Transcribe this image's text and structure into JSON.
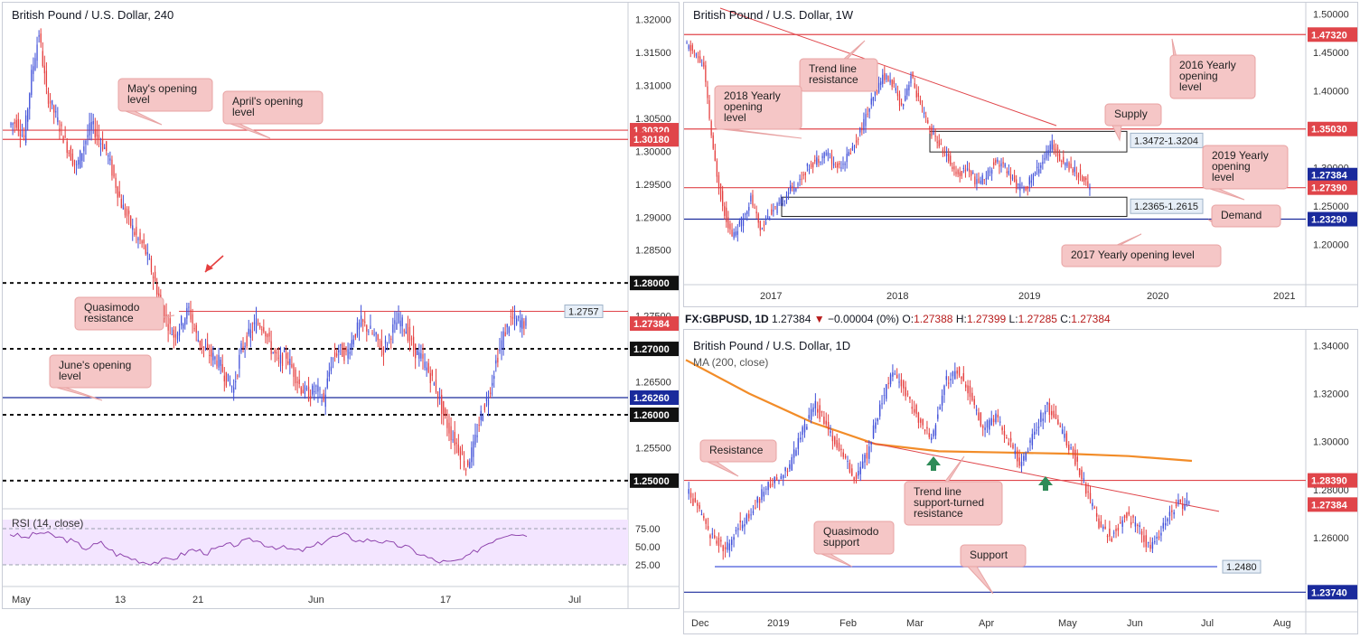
{
  "colors": {
    "bull": "#3f4fd8",
    "bear": "#e53e3e",
    "level_red": "#e0454a",
    "level_blue": "#1a2a9c",
    "level_black": "#111111",
    "callout_fill": "#f5c6c6",
    "callout_stroke": "#e8a3a3",
    "ma": "#f28c28",
    "rsi": "#8e44ad",
    "rsi_band": "#f3e5ff",
    "price_tag_red": "#e0454a",
    "price_tag_blue": "#1a2a9c",
    "price_tag_black": "#111111",
    "arrow_green": "#2e8b57"
  },
  "panel_4h": {
    "title": "British Pound / U.S. Dollar, 240",
    "rsi_label": "RSI (14, close)",
    "callouts": {
      "may_open": "May's opening level",
      "april_open": "April's opening level",
      "quasimodo": "Quasimodo resistance",
      "june_open": "June's opening level"
    },
    "arrow_icon": "red-arrow-icon",
    "rsi_ticks": [
      "75.00",
      "50.00",
      "25.00"
    ],
    "chart_data": {
      "type": "candlestick",
      "title": "British Pound / U.S. Dollar, 240",
      "ylim": [
        1.246,
        1.322
      ],
      "y_ticks": [
        "1.32000",
        "1.31500",
        "1.31000",
        "1.30500",
        "1.30000",
        "1.29500",
        "1.29000",
        "1.28500",
        "1.28000",
        "1.27500",
        "1.27000",
        "1.26500",
        "1.26000",
        "1.25500",
        "1.25000"
      ],
      "x_ticks": [
        "May",
        "13",
        "21",
        "Jun",
        "17",
        "Jul"
      ],
      "levels": [
        {
          "name": "april-open",
          "value": 1.3032,
          "label": "1.30320",
          "style": "red"
        },
        {
          "name": "may-open",
          "value": 1.3018,
          "label": "1.30180",
          "style": "red"
        },
        {
          "name": "round-1-28",
          "value": 1.28,
          "label": "1.28000",
          "style": "dash"
        },
        {
          "name": "quasimodo",
          "value": 1.2757,
          "label": "1.2757",
          "style": "thin-red"
        },
        {
          "name": "current",
          "value": 1.27384,
          "label": "1.27384",
          "style": "red-tag"
        },
        {
          "name": "round-1-27",
          "value": 1.27,
          "label": "1.27000",
          "style": "dash"
        },
        {
          "name": "june-open",
          "value": 1.2626,
          "label": "1.26260",
          "style": "blue"
        },
        {
          "name": "round-1-26",
          "value": 1.26,
          "label": "1.26000",
          "style": "dash"
        },
        {
          "name": "round-1-25",
          "value": 1.25,
          "label": "1.25000",
          "style": "dash"
        }
      ],
      "path": [
        [
          1.304,
          1.3045
        ],
        [
          1.302,
          1.3115
        ],
        [
          1.318,
          1.309
        ],
        [
          1.306,
          1.303
        ],
        [
          1.3,
          1.2975
        ],
        [
          1.301,
          1.304
        ],
        [
          1.302,
          1.3
        ],
        [
          1.296,
          1.292
        ],
        [
          1.2895,
          1.287
        ],
        [
          1.2855,
          1.282
        ],
        [
          1.278,
          1.2745
        ],
        [
          1.272,
          1.274
        ],
        [
          1.276,
          1.272
        ],
        [
          1.27,
          1.269
        ],
        [
          1.268,
          1.2655
        ],
        [
          1.264,
          1.27
        ],
        [
          1.272,
          1.274
        ],
        [
          1.2735,
          1.27
        ],
        [
          1.268,
          1.269
        ],
        [
          1.2665,
          1.264
        ],
        [
          1.263,
          1.264
        ],
        [
          1.262,
          1.268
        ],
        [
          1.27,
          1.269
        ],
        [
          1.272,
          1.274
        ],
        [
          1.273,
          1.2715
        ],
        [
          1.27,
          1.2725
        ],
        [
          1.2745,
          1.273
        ],
        [
          1.27,
          1.2685
        ],
        [
          1.2665,
          1.264
        ],
        [
          1.26,
          1.257
        ],
        [
          1.255,
          1.252
        ],
        [
          1.255,
          1.26
        ],
        [
          1.263,
          1.268
        ],
        [
          1.272,
          1.2745
        ],
        [
          1.2742,
          1.2738
        ]
      ],
      "rsi_values": [
        68,
        62,
        70,
        64,
        58,
        48,
        55,
        40,
        34,
        28,
        30,
        36,
        46,
        42,
        50,
        54,
        60,
        52,
        48,
        44,
        50,
        62,
        66,
        58,
        60,
        54,
        50,
        40,
        30,
        28,
        34,
        50,
        62,
        70,
        66
      ]
    }
  },
  "panel_1w": {
    "title": "British Pound / U.S. Dollar, 1W",
    "callouts": {
      "trend_line": "Trend line resistance",
      "yearly_2018": "2018 Yearly opening level",
      "supply": "Supply",
      "yearly_2016": "2016 Yearly opening level",
      "yearly_2019": "2019 Yearly opening level",
      "demand": "Demand",
      "yearly_2017": "2017 Yearly opening level"
    },
    "zones": {
      "supply": "1.3472-1.3204",
      "demand": "1.2365-1.2615"
    },
    "chart_data": {
      "type": "candlestick",
      "title": "British Pound / U.S. Dollar, 1W",
      "ylim": [
        1.15,
        1.51
      ],
      "y_ticks": [
        "1.50000",
        "1.45000",
        "1.40000",
        "1.35000",
        "1.30000",
        "1.25000",
        "1.20000"
      ],
      "x_ticks": [
        "2017",
        "2018",
        "2019",
        "2020",
        "2021"
      ],
      "levels": [
        {
          "name": "yearly-2016",
          "value": 1.4732,
          "label": "1.47320",
          "style": "red"
        },
        {
          "name": "yearly-2018",
          "value": 1.3503,
          "label": "1.35030",
          "style": "red"
        },
        {
          "name": "current",
          "value": 1.27384,
          "label": "1.27384",
          "style": "blue-tag"
        },
        {
          "name": "yearly-2019",
          "value": 1.2739,
          "label": "1.27390",
          "style": "red"
        },
        {
          "name": "yearly-2017",
          "value": 1.2329,
          "label": "1.23290",
          "style": "blue"
        }
      ],
      "path": [
        [
          1.46,
          1.45
        ],
        [
          1.43,
          1.32
        ],
        [
          1.25,
          1.21
        ],
        [
          1.23,
          1.26
        ],
        [
          1.22,
          1.24
        ],
        [
          1.25,
          1.27
        ],
        [
          1.28,
          1.3
        ],
        [
          1.31,
          1.32
        ],
        [
          1.3,
          1.31
        ],
        [
          1.33,
          1.36
        ],
        [
          1.39,
          1.42
        ],
        [
          1.41,
          1.38
        ],
        [
          1.42,
          1.38
        ],
        [
          1.35,
          1.33
        ],
        [
          1.31,
          1.29
        ],
        [
          1.3,
          1.28
        ],
        [
          1.29,
          1.31
        ],
        [
          1.3,
          1.28
        ],
        [
          1.27,
          1.29
        ],
        [
          1.31,
          1.33
        ],
        [
          1.31,
          1.3
        ],
        [
          1.29,
          1.2738
        ]
      ]
    }
  },
  "panel_1d": {
    "title": "British Pound / U.S. Dollar, 1D",
    "ma_label": "MA (200, close)",
    "header": {
      "symbol": "FX:GBPUSD, 1D",
      "last": "1.27384",
      "change": "−0.00004 (0%)",
      "o_label": "O:",
      "o": "1.27388",
      "h_label": "H:",
      "h": "1.27399",
      "l_label": "L:",
      "l": "1.27285",
      "c_label": "C:",
      "c": "1.27384"
    },
    "callouts": {
      "resistance": "Resistance",
      "trend_line": "Trend line support-turned resistance",
      "quasimodo": "Quasimodo support",
      "support": "Support"
    },
    "chart_data": {
      "type": "candlestick",
      "title": "British Pound / U.S. Dollar, 1D",
      "ylim": [
        1.23,
        1.345
      ],
      "y_ticks": [
        "1.34000",
        "1.32000",
        "1.30000",
        "1.28000",
        "1.26000"
      ],
      "x_ticks": [
        "Dec",
        "2019",
        "Feb",
        "Mar",
        "Apr",
        "May",
        "Jun",
        "Jul",
        "Aug"
      ],
      "levels": [
        {
          "name": "resistance",
          "value": 1.2839,
          "label": "1.28390",
          "style": "red"
        },
        {
          "name": "current",
          "value": 1.27384,
          "label": "1.27384",
          "style": "red-tag"
        },
        {
          "name": "quasimodo-support",
          "value": 1.248,
          "label": "1.2480",
          "style": "thin-blue"
        },
        {
          "name": "support",
          "value": 1.2374,
          "label": "1.23740",
          "style": "blue"
        }
      ],
      "path": [
        [
          1.28,
          1.27
        ],
        [
          1.26,
          1.255
        ],
        [
          1.265,
          1.27
        ],
        [
          1.28,
          1.285
        ],
        [
          1.29,
          1.305
        ],
        [
          1.315,
          1.305
        ],
        [
          1.295,
          1.285
        ],
        [
          1.295,
          1.315
        ],
        [
          1.33,
          1.32
        ],
        [
          1.31,
          1.3
        ],
        [
          1.325,
          1.33
        ],
        [
          1.32,
          1.305
        ],
        [
          1.31,
          1.3
        ],
        [
          1.29,
          1.305
        ],
        [
          1.315,
          1.305
        ],
        [
          1.295,
          1.28
        ],
        [
          1.265,
          1.26
        ],
        [
          1.27,
          1.265
        ],
        [
          1.255,
          1.265
        ],
        [
          1.2738,
          1.274
        ]
      ],
      "ma_values": [
        1.334,
        1.32,
        1.308,
        1.299,
        1.296,
        1.2955,
        1.295,
        1.294,
        1.292
      ]
    }
  }
}
